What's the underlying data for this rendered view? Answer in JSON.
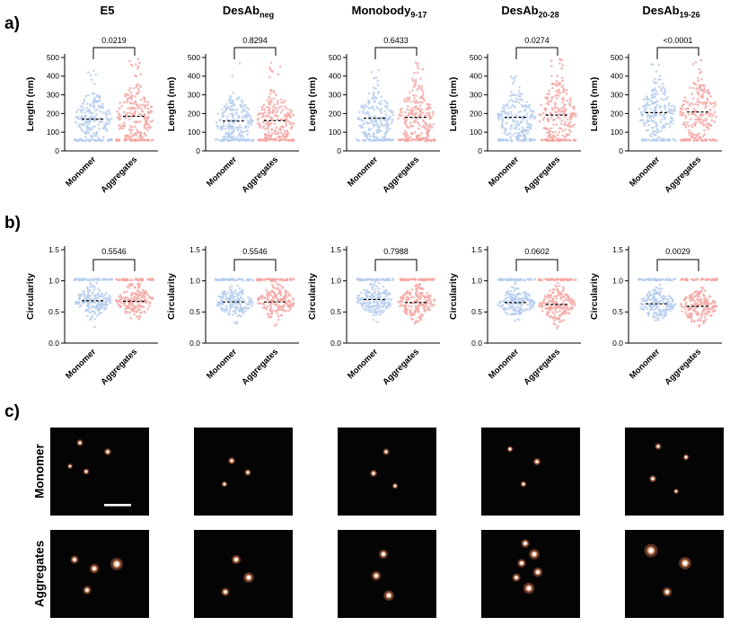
{
  "figure": {
    "panel_labels": {
      "a": "a)",
      "b": "b)",
      "c": "c)"
    }
  },
  "chart_data": [
    {
      "type": "scatter",
      "panel": "a",
      "title_main": "E5",
      "title_sub": "",
      "p_value": "0.0219",
      "ylabel": "Length (nm)",
      "ylim": [
        0,
        500
      ],
      "yticks": [
        0,
        100,
        200,
        300,
        400,
        500
      ],
      "categories": [
        "Monomer",
        "Aggregates"
      ],
      "series": [
        {
          "name": "Monomer",
          "color": "#b5cdee",
          "median": 170,
          "spread": 68,
          "n": 170,
          "tail_n": 8,
          "band": 58,
          "band_spread": 4,
          "band_n": 45,
          "clip": [
            66,
            460
          ]
        },
        {
          "name": "Aggregates",
          "color": "#f4a6a2",
          "median": 185,
          "spread": 84,
          "n": 170,
          "tail_n": 16,
          "band": 58,
          "band_spread": 4,
          "band_n": 45,
          "clip": [
            66,
            495
          ]
        }
      ]
    },
    {
      "type": "scatter",
      "panel": "a",
      "title_main": "DesAb",
      "title_sub": "neg",
      "p_value": "0.8294",
      "ylabel": "Length (nm)",
      "ylim": [
        0,
        500
      ],
      "yticks": [
        0,
        100,
        200,
        300,
        400,
        500
      ],
      "categories": [
        "Monomer",
        "Aggregates"
      ],
      "series": [
        {
          "name": "Monomer",
          "color": "#b5cdee",
          "median": 160,
          "spread": 66,
          "n": 170,
          "tail_n": 8,
          "band": 58,
          "band_spread": 4,
          "band_n": 45,
          "clip": [
            66,
            470
          ]
        },
        {
          "name": "Aggregates",
          "color": "#f4a6a2",
          "median": 162,
          "spread": 72,
          "n": 170,
          "tail_n": 12,
          "band": 58,
          "band_spread": 4,
          "band_n": 45,
          "clip": [
            66,
            480
          ]
        }
      ]
    },
    {
      "type": "scatter",
      "panel": "a",
      "title_main": "Monobody",
      "title_sub": "9-17",
      "p_value": "0.6433",
      "ylabel": "Length (nm)",
      "ylim": [
        0,
        500
      ],
      "yticks": [
        0,
        100,
        200,
        300,
        400,
        500
      ],
      "categories": [
        "Monomer",
        "Aggregates"
      ],
      "series": [
        {
          "name": "Monomer",
          "color": "#b5cdee",
          "median": 175,
          "spread": 68,
          "n": 170,
          "tail_n": 8,
          "band": 58,
          "band_spread": 4,
          "band_n": 45,
          "clip": [
            66,
            450
          ]
        },
        {
          "name": "Aggregates",
          "color": "#f4a6a2",
          "median": 180,
          "spread": 80,
          "n": 170,
          "tail_n": 14,
          "band": 58,
          "band_spread": 4,
          "band_n": 45,
          "clip": [
            66,
            490
          ]
        }
      ]
    },
    {
      "type": "scatter",
      "panel": "a",
      "title_main": "DesAb",
      "title_sub": "20-28",
      "p_value": "0.0274",
      "ylabel": "Length (nm)",
      "ylim": [
        0,
        500
      ],
      "yticks": [
        0,
        100,
        200,
        300,
        400,
        500
      ],
      "categories": [
        "Monomer",
        "Aggregates"
      ],
      "series": [
        {
          "name": "Monomer",
          "color": "#b5cdee",
          "median": 180,
          "spread": 70,
          "n": 170,
          "tail_n": 8,
          "band": 58,
          "band_spread": 4,
          "band_n": 45,
          "clip": [
            66,
            470
          ]
        },
        {
          "name": "Aggregates",
          "color": "#f4a6a2",
          "median": 192,
          "spread": 86,
          "n": 170,
          "tail_n": 16,
          "band": 58,
          "band_spread": 4,
          "band_n": 45,
          "clip": [
            66,
            500
          ]
        }
      ]
    },
    {
      "type": "scatter",
      "panel": "a",
      "title_main": "DesAb",
      "title_sub": "19-26",
      "p_value": "<0.0001",
      "ylabel": "Length (nm)",
      "ylim": [
        0,
        500
      ],
      "yticks": [
        0,
        100,
        200,
        300,
        400,
        500
      ],
      "categories": [
        "Monomer",
        "Aggregates"
      ],
      "series": [
        {
          "name": "Monomer",
          "color": "#b5cdee",
          "median": 205,
          "spread": 74,
          "n": 170,
          "tail_n": 8,
          "band": 58,
          "band_spread": 4,
          "band_n": 40,
          "clip": [
            66,
            470
          ]
        },
        {
          "name": "Aggregates",
          "color": "#f4a6a2",
          "median": 208,
          "spread": 80,
          "n": 170,
          "tail_n": 12,
          "band": 58,
          "band_spread": 4,
          "band_n": 40,
          "clip": [
            66,
            490
          ]
        }
      ]
    },
    {
      "type": "scatter",
      "panel": "b",
      "p_value": "0.5546",
      "ylabel": "Circularity",
      "ylim": [
        0,
        1.5
      ],
      "yticks": [
        "0.0",
        "0.5",
        "1.0",
        "1.5"
      ],
      "categories": [
        "Monomer",
        "Aggregates"
      ],
      "series": [
        {
          "name": "Monomer",
          "color": "#b5cdee",
          "median": 0.68,
          "spread": 0.12,
          "n": 170,
          "tail_n": 0,
          "band": 1.02,
          "band_spread": 0.012,
          "band_n": 55,
          "clip": [
            0.22,
            0.99
          ]
        },
        {
          "name": "Aggregates",
          "color": "#f4a6a2",
          "median": 0.67,
          "spread": 0.13,
          "n": 170,
          "tail_n": 0,
          "band": 1.02,
          "band_spread": 0.012,
          "band_n": 55,
          "clip": [
            0.2,
            0.99
          ]
        }
      ]
    },
    {
      "type": "scatter",
      "panel": "b",
      "p_value": "0.5546",
      "ylabel": "Circularity",
      "ylim": [
        0,
        1.5
      ],
      "yticks": [
        "0.0",
        "0.5",
        "1.0",
        "1.5"
      ],
      "categories": [
        "Monomer",
        "Aggregates"
      ],
      "series": [
        {
          "name": "Monomer",
          "color": "#b5cdee",
          "median": 0.66,
          "spread": 0.12,
          "n": 170,
          "tail_n": 0,
          "band": 1.02,
          "band_spread": 0.012,
          "band_n": 55,
          "clip": [
            0.22,
            0.99
          ]
        },
        {
          "name": "Aggregates",
          "color": "#f4a6a2",
          "median": 0.66,
          "spread": 0.13,
          "n": 170,
          "tail_n": 0,
          "band": 1.02,
          "band_spread": 0.012,
          "band_n": 55,
          "clip": [
            0.2,
            0.99
          ]
        }
      ]
    },
    {
      "type": "scatter",
      "panel": "b",
      "p_value": "0.7988",
      "ylabel": "Circularity",
      "ylim": [
        0,
        1.5
      ],
      "yticks": [
        "0.0",
        "0.5",
        "1.0",
        "1.5"
      ],
      "categories": [
        "Monomer",
        "Aggregates"
      ],
      "series": [
        {
          "name": "Monomer",
          "color": "#b5cdee",
          "median": 0.7,
          "spread": 0.12,
          "n": 170,
          "tail_n": 0,
          "band": 1.02,
          "band_spread": 0.012,
          "band_n": 55,
          "clip": [
            0.25,
            0.99
          ]
        },
        {
          "name": "Aggregates",
          "color": "#f4a6a2",
          "median": 0.65,
          "spread": 0.13,
          "n": 170,
          "tail_n": 0,
          "band": 1.02,
          "band_spread": 0.012,
          "band_n": 55,
          "clip": [
            0.2,
            0.99
          ]
        }
      ]
    },
    {
      "type": "scatter",
      "panel": "b",
      "p_value": "0.0602",
      "ylabel": "Circularity",
      "ylim": [
        0,
        1.5
      ],
      "yticks": [
        "0.0",
        "0.5",
        "1.0",
        "1.5"
      ],
      "categories": [
        "Monomer",
        "Aggregates"
      ],
      "series": [
        {
          "name": "Monomer",
          "color": "#b5cdee",
          "median": 0.65,
          "spread": 0.12,
          "n": 170,
          "tail_n": 0,
          "band": 1.02,
          "band_spread": 0.012,
          "band_n": 55,
          "clip": [
            0.22,
            0.99
          ]
        },
        {
          "name": "Aggregates",
          "color": "#f4a6a2",
          "median": 0.62,
          "spread": 0.13,
          "n": 170,
          "tail_n": 0,
          "band": 1.02,
          "band_spread": 0.012,
          "band_n": 50,
          "clip": [
            0.18,
            0.99
          ]
        }
      ]
    },
    {
      "type": "scatter",
      "panel": "b",
      "p_value": "0.0029",
      "ylabel": "Circularity",
      "ylim": [
        0,
        1.5
      ],
      "yticks": [
        "0.0",
        "0.5",
        "1.0",
        "1.5"
      ],
      "categories": [
        "Monomer",
        "Aggregates"
      ],
      "series": [
        {
          "name": "Monomer",
          "color": "#b5cdee",
          "median": 0.63,
          "spread": 0.12,
          "n": 170,
          "tail_n": 0,
          "band": 1.02,
          "band_spread": 0.012,
          "band_n": 50,
          "clip": [
            0.22,
            0.99
          ]
        },
        {
          "name": "Aggregates",
          "color": "#f4a6a2",
          "median": 0.59,
          "spread": 0.13,
          "n": 170,
          "tail_n": 0,
          "band": 1.02,
          "band_spread": 0.012,
          "band_n": 45,
          "clip": [
            0.18,
            0.99
          ]
        }
      ]
    }
  ],
  "microscopy": {
    "row_labels": [
      "Monomer",
      "Aggregates"
    ],
    "rows": [
      {
        "images": [
          {
            "dots": [
              {
                "x": 33,
                "y": 17,
                "r": 1.6
              },
              {
                "x": 64,
                "y": 27,
                "r": 1.7
              },
              {
                "x": 40,
                "y": 49,
                "r": 1.5
              },
              {
                "x": 22,
                "y": 43,
                "r": 1.3
              }
            ],
            "scalebar": true
          },
          {
            "dots": [
              {
                "x": 42,
                "y": 37,
                "r": 1.7
              },
              {
                "x": 60,
                "y": 50,
                "r": 1.6
              },
              {
                "x": 34,
                "y": 63,
                "r": 1.4
              }
            ],
            "scalebar": false
          },
          {
            "dots": [
              {
                "x": 54,
                "y": 27,
                "r": 1.6
              },
              {
                "x": 40,
                "y": 51,
                "r": 1.7
              },
              {
                "x": 64,
                "y": 65,
                "r": 1.4
              }
            ],
            "scalebar": false
          },
          {
            "dots": [
              {
                "x": 32,
                "y": 24,
                "r": 1.5
              },
              {
                "x": 62,
                "y": 38,
                "r": 1.8
              },
              {
                "x": 47,
                "y": 63,
                "r": 1.5
              }
            ],
            "scalebar": false
          },
          {
            "dots": [
              {
                "x": 37,
                "y": 21,
                "r": 1.6
              },
              {
                "x": 68,
                "y": 33,
                "r": 1.5
              },
              {
                "x": 31,
                "y": 57,
                "r": 1.7
              },
              {
                "x": 57,
                "y": 71,
                "r": 1.3
              }
            ],
            "scalebar": false
          }
        ]
      },
      {
        "images": [
          {
            "dots": [
              {
                "x": 27,
                "y": 33,
                "r": 2
              },
              {
                "x": 49,
                "y": 43,
                "r": 2.3
              },
              {
                "x": 74,
                "y": 38,
                "r": 3
              },
              {
                "x": 41,
                "y": 67,
                "r": 2
              }
            ],
            "scalebar": false
          },
          {
            "dots": [
              {
                "x": 47,
                "y": 33,
                "r": 2.2
              },
              {
                "x": 61,
                "y": 53,
                "r": 2.5
              },
              {
                "x": 35,
                "y": 69,
                "r": 2
              }
            ],
            "scalebar": false
          },
          {
            "dots": [
              {
                "x": 51,
                "y": 27,
                "r": 2.2
              },
              {
                "x": 43,
                "y": 51,
                "r": 2.3
              },
              {
                "x": 57,
                "y": 73,
                "r": 2.5
              }
            ],
            "scalebar": false
          },
          {
            "dots": [
              {
                "x": 49,
                "y": 15,
                "r": 2.1
              },
              {
                "x": 59,
                "y": 27,
                "r": 2.5
              },
              {
                "x": 45,
                "y": 37,
                "r": 2.1
              },
              {
                "x": 63,
                "y": 47,
                "r": 2.3
              },
              {
                "x": 39,
                "y": 53,
                "r": 2
              },
              {
                "x": 53,
                "y": 65,
                "r": 2.7
              }
            ],
            "scalebar": false
          },
          {
            "dots": [
              {
                "x": 29,
                "y": 23,
                "r": 3.2
              },
              {
                "x": 67,
                "y": 37,
                "r": 3
              },
              {
                "x": 47,
                "y": 69,
                "r": 2.3
              }
            ],
            "scalebar": false
          }
        ]
      }
    ]
  }
}
